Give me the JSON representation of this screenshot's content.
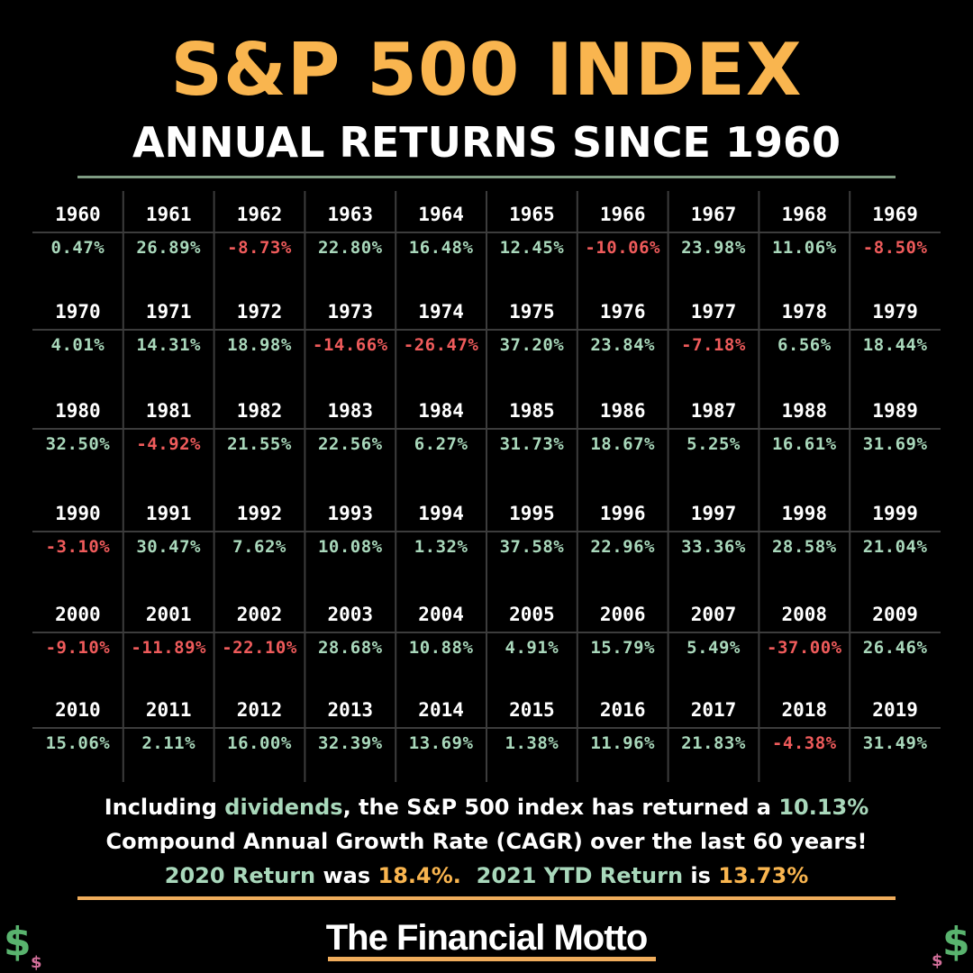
{
  "header": {
    "title": "S&P 500 INDEX",
    "subtitle": "ANNUAL RETURNS SINCE 1960"
  },
  "colors": {
    "title": "#f9b54f",
    "positive": "#a9d8bb",
    "negative": "#ef5b5b",
    "grid_line": "#3c3c3c",
    "rule": "#7e9b82",
    "accent_rule": "#f0ad5c"
  },
  "chart_data": {
    "type": "table",
    "columns": 10,
    "rows": [
      {
        "years": [
          "1960",
          "1961",
          "1962",
          "1963",
          "1964",
          "1965",
          "1966",
          "1967",
          "1968",
          "1969"
        ],
        "returns": [
          "0.47%",
          "26.89%",
          "-8.73%",
          "22.80%",
          "16.48%",
          "12.45%",
          "-10.06%",
          "23.98%",
          "11.06%",
          "-8.50%"
        ]
      },
      {
        "years": [
          "1970",
          "1971",
          "1972",
          "1973",
          "1974",
          "1975",
          "1976",
          "1977",
          "1978",
          "1979"
        ],
        "returns": [
          "4.01%",
          "14.31%",
          "18.98%",
          "-14.66%",
          "-26.47%",
          "37.20%",
          "23.84%",
          "-7.18%",
          "6.56%",
          "18.44%"
        ]
      },
      {
        "years": [
          "1980",
          "1981",
          "1982",
          "1983",
          "1984",
          "1985",
          "1986",
          "1987",
          "1988",
          "1989"
        ],
        "returns": [
          "32.50%",
          "-4.92%",
          "21.55%",
          "22.56%",
          "6.27%",
          "31.73%",
          "18.67%",
          "5.25%",
          "16.61%",
          "31.69%"
        ]
      },
      {
        "years": [
          "1990",
          "1991",
          "1992",
          "1993",
          "1994",
          "1995",
          "1996",
          "1997",
          "1998",
          "1999"
        ],
        "returns": [
          "-3.10%",
          "30.47%",
          "7.62%",
          "10.08%",
          "1.32%",
          "37.58%",
          "22.96%",
          "33.36%",
          "28.58%",
          "21.04%"
        ]
      },
      {
        "years": [
          "2000",
          "2001",
          "2002",
          "2003",
          "2004",
          "2005",
          "2006",
          "2007",
          "2008",
          "2009"
        ],
        "returns": [
          "-9.10%",
          "-11.89%",
          "-22.10%",
          "28.68%",
          "10.88%",
          "4.91%",
          "15.79%",
          "5.49%",
          "-37.00%",
          "26.46%"
        ]
      },
      {
        "years": [
          "2010",
          "2011",
          "2012",
          "2013",
          "2014",
          "2015",
          "2016",
          "2017",
          "2018",
          "2019"
        ],
        "returns": [
          "15.06%",
          "2.11%",
          "16.00%",
          "32.39%",
          "13.69%",
          "1.38%",
          "11.96%",
          "21.83%",
          "-4.38%",
          "31.49%"
        ]
      }
    ]
  },
  "footer": {
    "line1_a": "Including ",
    "line1_b": "dividends",
    "line1_c": ", the S&P 500 index has returned a ",
    "line1_d": "10.13%",
    "line2": "Compound Annual Growth Rate (CAGR) over the last 60 years!",
    "line3_a": "2020 Return",
    "line3_b": " was ",
    "line3_c": "18.4%.",
    "line3_d": "2021 YTD Return",
    "line3_e": " is ",
    "line3_f": "13.73%"
  },
  "brand": {
    "name": "The Financial Motto"
  },
  "decor": {
    "dollar_icon_big": "$",
    "dollar_icon_small": "$"
  }
}
